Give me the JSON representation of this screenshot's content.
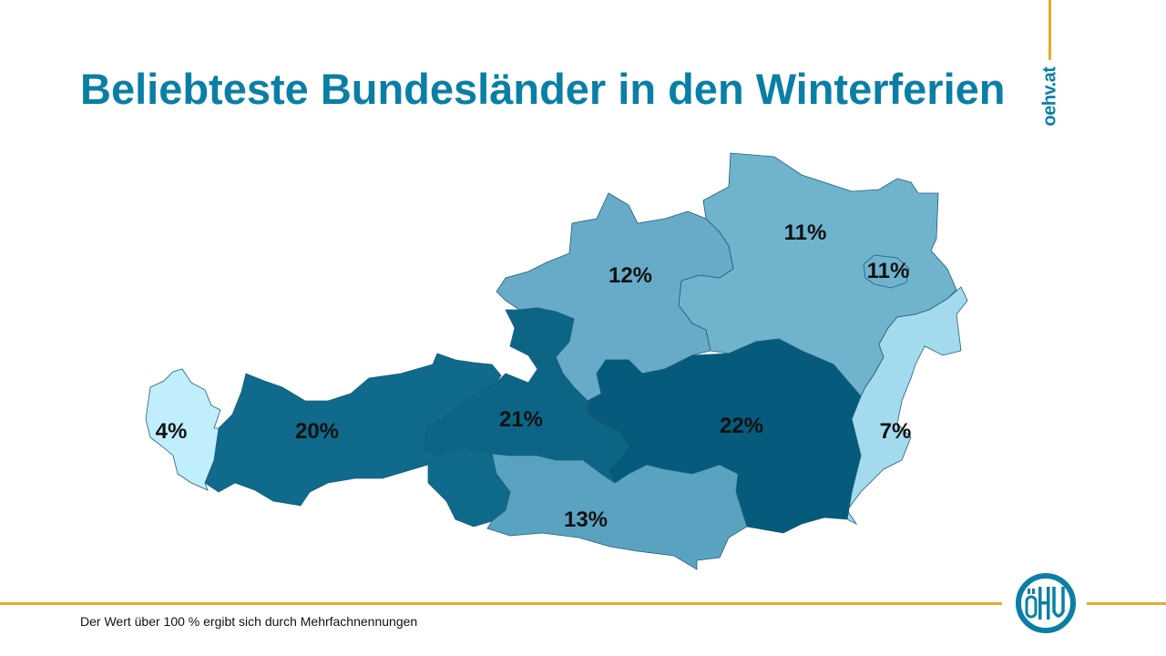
{
  "title": "Beliebteste Bundesländer in den Winterferien",
  "website": "oehv.at",
  "logo_text": "öHV",
  "footnote": "Der Wert über 100 % ergibt sich durch Mehrfachnennungen",
  "colors": {
    "title": "#0a7fa6",
    "accent_line": "#e8a92f"
  },
  "map": {
    "regions": [
      {
        "id": "vorarlberg",
        "value": "4%",
        "color": "#c0eefc"
      },
      {
        "id": "tirol",
        "value": "20%",
        "color": "#0f6a8b"
      },
      {
        "id": "salzburg",
        "value": "21%",
        "color": "#0d6586"
      },
      {
        "id": "oberoesterreich",
        "value": "12%",
        "color": "#67abc8"
      },
      {
        "id": "niederoesterreich",
        "value": "11%",
        "color": "#70b3cd"
      },
      {
        "id": "wien",
        "value": "11%",
        "color": "#70b3cd"
      },
      {
        "id": "burgenland",
        "value": "7%",
        "color": "#a4daee"
      },
      {
        "id": "steiermark",
        "value": "22%",
        "color": "#065a7c"
      },
      {
        "id": "kaernten",
        "value": "13%",
        "color": "#5aa3c0"
      }
    ]
  }
}
